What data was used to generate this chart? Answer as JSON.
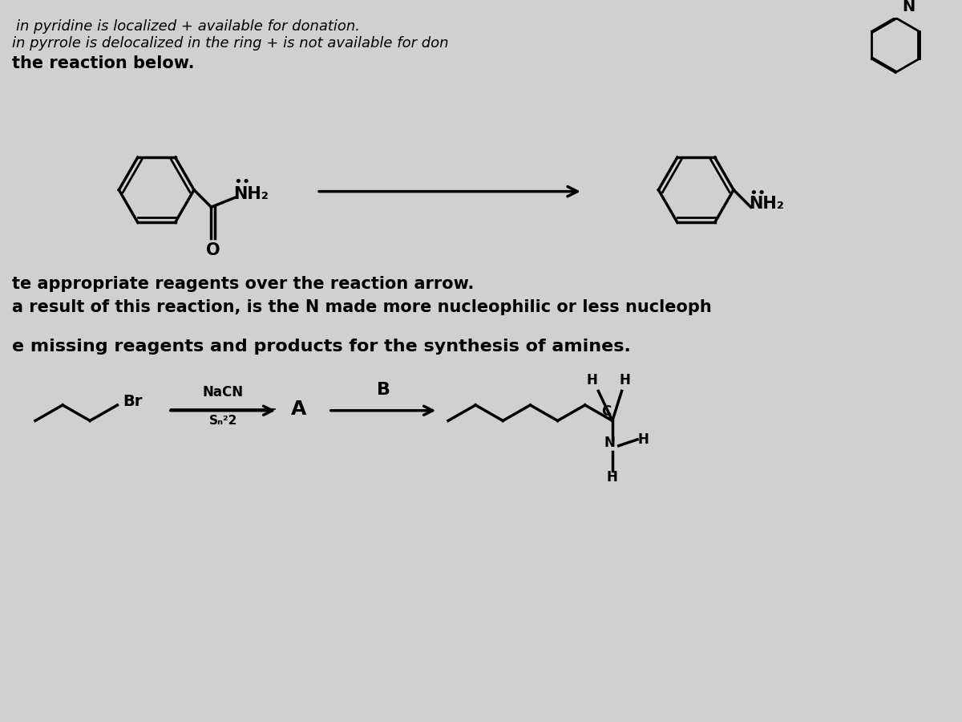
{
  "bg_color": "#d0d0d0",
  "text_color": "#000000",
  "line1": "in pyridine is localized + available for donation.",
  "line2": "in pyrrole is delocalized in the ring + is not available for don",
  "line3_bold": "the reaction below.",
  "text_reagents": "te appropriate reagents over the reaction arrow.",
  "text_nucleophilic": "a result of this reaction, is the N made more nucleophilic or less nucleoph",
  "text_missing": "e missing reagents and products for the synthesis of amines.",
  "nacn_label": "NaCN",
  "sn2_label": "Sₙ²2",
  "label_A": "A",
  "label_B": "B",
  "NH2_label": "NH₂",
  "O_label": "O",
  "Br_label": "Br"
}
